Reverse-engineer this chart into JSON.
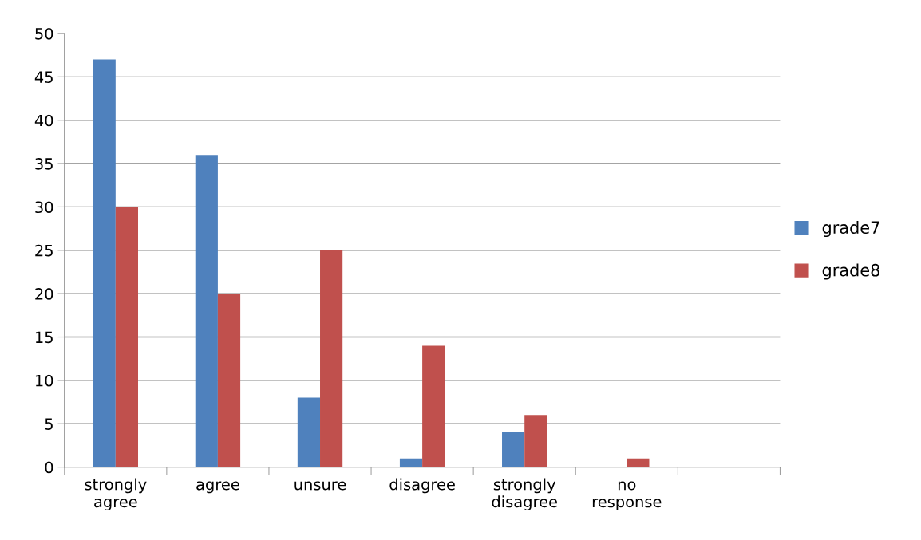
{
  "chart_data": {
    "type": "bar",
    "categories": [
      "strongly agree",
      "agree",
      "unsure",
      "disagree",
      "strongly disagree",
      "no response",
      null
    ],
    "series": [
      {
        "name": "grade7",
        "color": "#4f81bd",
        "values": [
          47,
          36,
          8,
          1,
          4,
          0,
          null
        ]
      },
      {
        "name": "grade8",
        "color": "#c0504d",
        "values": [
          30,
          20,
          25,
          14,
          6,
          1,
          null
        ]
      }
    ],
    "ylim": [
      0,
      50
    ],
    "yticks": [
      0,
      5,
      10,
      15,
      20,
      25,
      30,
      35,
      40,
      45,
      50
    ],
    "grid": "y",
    "legend": "right"
  }
}
